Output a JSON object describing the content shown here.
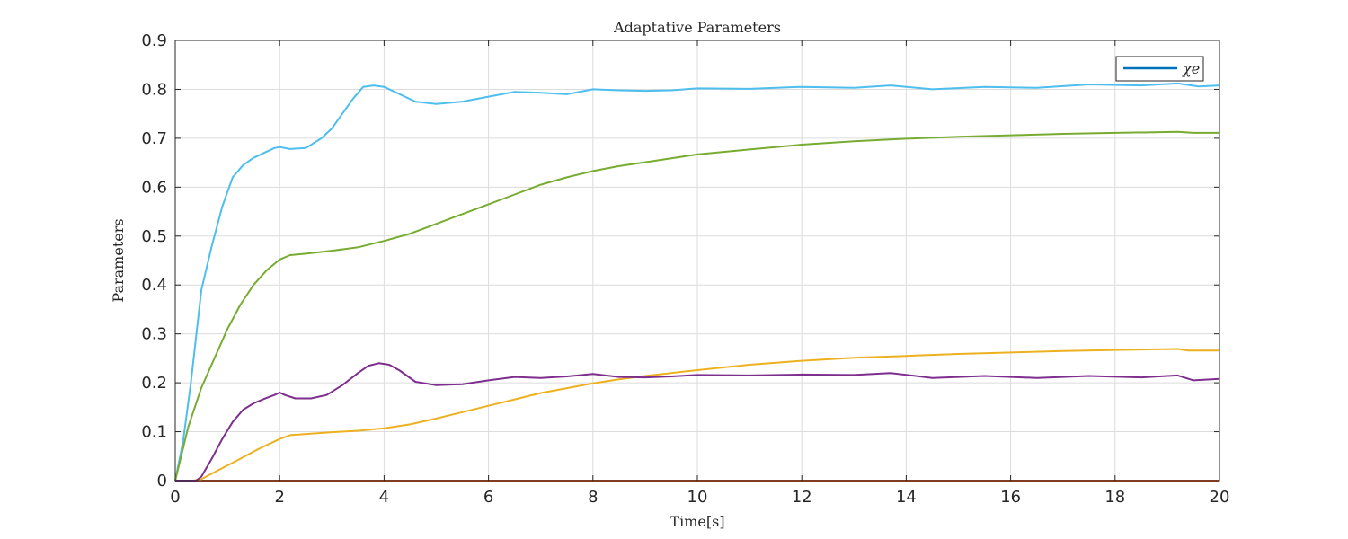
{
  "chart_data": {
    "type": "line",
    "title": "Adaptative Parameters",
    "xlabel": "Time[s]",
    "ylabel": "Parameters",
    "xlim": [
      0,
      20
    ],
    "ylim": [
      0,
      0.9
    ],
    "xticks": [
      0,
      2,
      4,
      6,
      8,
      10,
      12,
      14,
      16,
      18,
      20
    ],
    "yticks": [
      0,
      0.1,
      0.2,
      0.3,
      0.4,
      0.5,
      0.6,
      0.7,
      0.8,
      0.9
    ],
    "grid": true,
    "legend_position": "top-right",
    "legend_label": "χe",
    "legend_color": "#0072BD",
    "series": [
      {
        "color": "#D95319",
        "x": [
          0,
          20
        ],
        "y": [
          0,
          0
        ]
      },
      {
        "color": "#4DBEEE",
        "x": [
          0,
          0.15,
          0.3,
          0.5,
          0.7,
          0.9,
          1.1,
          1.3,
          1.5,
          1.7,
          1.9,
          2.0,
          2.2,
          2.5,
          2.8,
          3.0,
          3.2,
          3.4,
          3.6,
          3.8,
          4.0,
          4.3,
          4.6,
          5.0,
          5.5,
          6.0,
          6.5,
          7.0,
          7.5,
          8.0,
          8.5,
          9.0,
          9.5,
          10.0,
          11.0,
          12.0,
          13.0,
          13.7,
          14.5,
          15.5,
          16.5,
          17.5,
          18.5,
          19.2,
          19.6,
          20.0
        ],
        "y": [
          0,
          0.08,
          0.2,
          0.39,
          0.48,
          0.56,
          0.62,
          0.645,
          0.66,
          0.67,
          0.68,
          0.682,
          0.678,
          0.68,
          0.7,
          0.72,
          0.75,
          0.78,
          0.805,
          0.808,
          0.805,
          0.79,
          0.775,
          0.77,
          0.775,
          0.785,
          0.795,
          0.793,
          0.79,
          0.8,
          0.798,
          0.797,
          0.798,
          0.802,
          0.801,
          0.805,
          0.803,
          0.808,
          0.8,
          0.805,
          0.803,
          0.81,
          0.808,
          0.812,
          0.806,
          0.808
        ]
      },
      {
        "color": "#77AC30",
        "x": [
          0,
          0.25,
          0.5,
          0.75,
          1.0,
          1.25,
          1.5,
          1.75,
          2.0,
          2.2,
          2.5,
          3.0,
          3.5,
          4.0,
          4.5,
          5.0,
          5.5,
          6.0,
          6.5,
          7.0,
          7.5,
          8.0,
          8.5,
          9.0,
          9.5,
          10.0,
          11.0,
          12.0,
          13.0,
          14.0,
          15.0,
          16.0,
          17.0,
          18.0,
          19.2,
          19.5,
          20.0
        ],
        "y": [
          0,
          0.11,
          0.19,
          0.25,
          0.31,
          0.36,
          0.4,
          0.43,
          0.452,
          0.461,
          0.464,
          0.47,
          0.477,
          0.49,
          0.505,
          0.525,
          0.545,
          0.565,
          0.585,
          0.605,
          0.62,
          0.633,
          0.643,
          0.651,
          0.659,
          0.667,
          0.677,
          0.687,
          0.694,
          0.699,
          0.703,
          0.706,
          0.709,
          0.711,
          0.713,
          0.711,
          0.711
        ]
      },
      {
        "color": "#EDB120",
        "x": [
          0,
          0.35,
          0.5,
          0.8,
          1.2,
          1.6,
          2.0,
          2.2,
          2.6,
          3.0,
          3.5,
          4.0,
          4.5,
          5.0,
          5.5,
          6.0,
          6.5,
          7.0,
          7.5,
          8.0,
          8.5,
          9.0,
          9.5,
          10.0,
          11.0,
          12.0,
          13.0,
          14.0,
          15.0,
          16.0,
          17.0,
          18.0,
          19.2,
          19.4,
          20.0
        ],
        "y": [
          0,
          0,
          0.003,
          0.02,
          0.042,
          0.065,
          0.085,
          0.093,
          0.096,
          0.099,
          0.102,
          0.107,
          0.115,
          0.127,
          0.14,
          0.153,
          0.166,
          0.179,
          0.189,
          0.199,
          0.207,
          0.214,
          0.22,
          0.226,
          0.237,
          0.245,
          0.251,
          0.255,
          0.259,
          0.262,
          0.265,
          0.267,
          0.269,
          0.266,
          0.266
        ]
      },
      {
        "color": "#7E2F8E",
        "x": [
          0,
          0.4,
          0.5,
          0.7,
          0.9,
          1.1,
          1.3,
          1.5,
          1.7,
          1.9,
          2.0,
          2.1,
          2.3,
          2.6,
          2.9,
          3.2,
          3.5,
          3.7,
          3.9,
          4.1,
          4.3,
          4.6,
          5.0,
          5.5,
          6.0,
          6.5,
          7.0,
          7.5,
          8.0,
          8.5,
          9.0,
          9.5,
          10.0,
          11.0,
          12.0,
          13.0,
          13.7,
          14.5,
          15.5,
          16.5,
          17.5,
          18.5,
          19.2,
          19.5,
          20.0
        ],
        "y": [
          0,
          0,
          0.008,
          0.045,
          0.085,
          0.12,
          0.145,
          0.158,
          0.167,
          0.175,
          0.18,
          0.175,
          0.168,
          0.168,
          0.175,
          0.195,
          0.22,
          0.235,
          0.24,
          0.237,
          0.225,
          0.202,
          0.195,
          0.197,
          0.205,
          0.212,
          0.21,
          0.213,
          0.218,
          0.212,
          0.211,
          0.213,
          0.216,
          0.215,
          0.217,
          0.216,
          0.22,
          0.21,
          0.214,
          0.21,
          0.214,
          0.211,
          0.215,
          0.205,
          0.208
        ]
      }
    ]
  }
}
